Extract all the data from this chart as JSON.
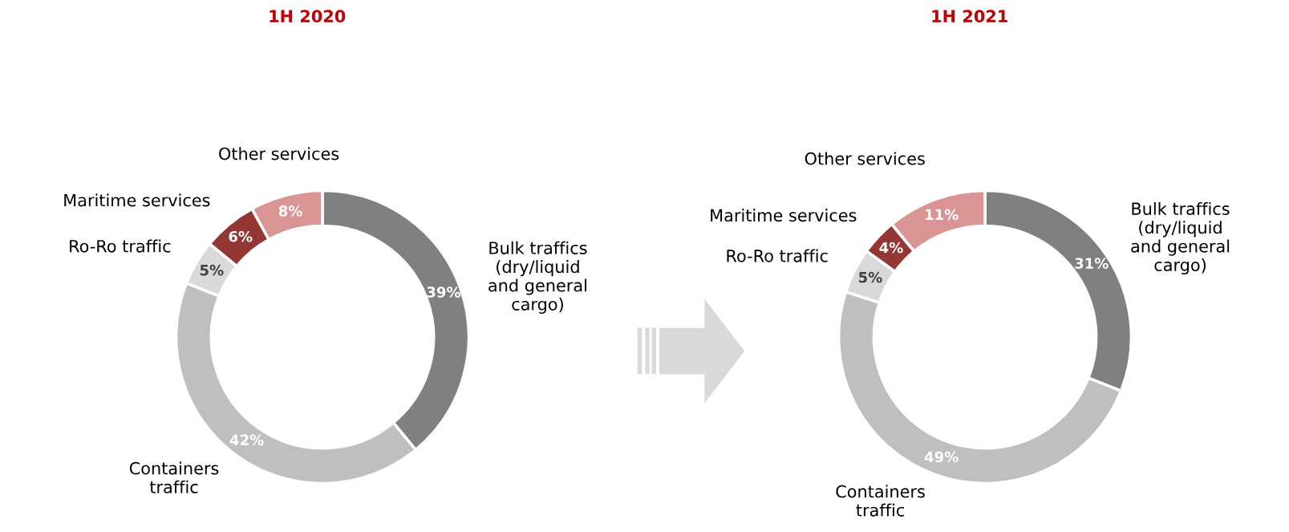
{
  "chart_data": [
    {
      "type": "donut",
      "title": "1H 2020",
      "categories": [
        "Bulk traffics\n(dry/liquid\nand general\ncargo)",
        "Containers\ntraffic",
        "Ro-Ro traffic",
        "Maritime services",
        "Other services"
      ],
      "values": [
        39,
        42,
        5,
        6,
        8
      ],
      "colors": [
        "#808080",
        "#bfbfbf",
        "#d9d9d9",
        "#943634",
        "#d99594"
      ],
      "value_labels": [
        "39%",
        "42%",
        "5%",
        "6%",
        "8%"
      ]
    },
    {
      "type": "donut",
      "title": "1H 2021",
      "categories": [
        "Bulk traffics\n(dry/liquid\nand general\ncargo)",
        "Containers\ntraffic",
        "Ro-Ro traffic",
        "Maritime services",
        "Other services"
      ],
      "values": [
        31,
        49,
        5,
        4,
        11
      ],
      "colors": [
        "#808080",
        "#bfbfbf",
        "#d9d9d9",
        "#943634",
        "#d99594"
      ],
      "value_labels": [
        "31%",
        "49%",
        "5%",
        "4%",
        "11%"
      ]
    }
  ]
}
